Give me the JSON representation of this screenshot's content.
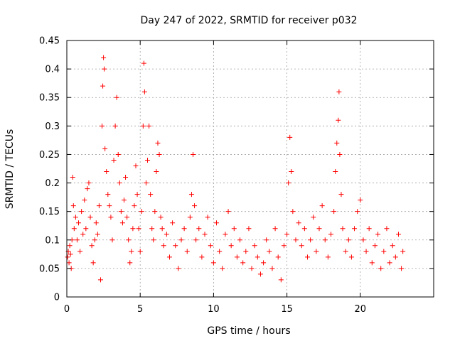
{
  "chart_data": {
    "type": "scatter",
    "title": "Day 247 of 2022, SRMTID for receiver p032",
    "xlabel": "GPS time / hours",
    "ylabel": "SRMTID / TECUs",
    "xlim": [
      0,
      25
    ],
    "ylim": [
      0,
      0.45
    ],
    "grid": true,
    "marker": "+",
    "marker_color": "#ff0000",
    "x_ticks": [
      0,
      5,
      10,
      15,
      20
    ],
    "x_tick_labels": [
      "0",
      "5",
      "10",
      "15",
      "20"
    ],
    "y_ticks": [
      0,
      0.05,
      0.1,
      0.15,
      0.2,
      0.25,
      0.3,
      0.35,
      0.4,
      0.45
    ],
    "y_tick_labels": [
      "0",
      "0.05",
      "0.1",
      "0.15",
      "0.2",
      "0.25",
      "0.3",
      "0.35",
      "0.4",
      "0.45"
    ],
    "series": [
      {
        "name": "SRMTID",
        "points": [
          [
            0.05,
            0.07
          ],
          [
            0.1,
            0.08
          ],
          [
            0.15,
            0.06
          ],
          [
            0.2,
            0.09
          ],
          [
            0.25,
            0.075
          ],
          [
            0.3,
            0.05
          ],
          [
            0.35,
            0.1
          ],
          [
            0.4,
            0.21
          ],
          [
            0.45,
            0.16
          ],
          [
            0.5,
            0.12
          ],
          [
            0.6,
            0.14
          ],
          [
            0.7,
            0.1
          ],
          [
            0.8,
            0.13
          ],
          [
            0.9,
            0.08
          ],
          [
            1.0,
            0.15
          ],
          [
            1.1,
            0.11
          ],
          [
            1.2,
            0.17
          ],
          [
            1.3,
            0.12
          ],
          [
            1.4,
            0.19
          ],
          [
            1.5,
            0.2
          ],
          [
            1.6,
            0.14
          ],
          [
            1.7,
            0.09
          ],
          [
            1.8,
            0.06
          ],
          [
            1.9,
            0.1
          ],
          [
            2.0,
            0.13
          ],
          [
            2.1,
            0.11
          ],
          [
            2.2,
            0.16
          ],
          [
            2.3,
            0.03
          ],
          [
            2.4,
            0.3
          ],
          [
            2.45,
            0.37
          ],
          [
            2.5,
            0.42
          ],
          [
            2.55,
            0.4
          ],
          [
            2.6,
            0.26
          ],
          [
            2.7,
            0.22
          ],
          [
            2.8,
            0.18
          ],
          [
            2.9,
            0.16
          ],
          [
            3.0,
            0.14
          ],
          [
            3.1,
            0.1
          ],
          [
            3.2,
            0.24
          ],
          [
            3.3,
            0.3
          ],
          [
            3.4,
            0.35
          ],
          [
            3.5,
            0.25
          ],
          [
            3.6,
            0.2
          ],
          [
            3.7,
            0.15
          ],
          [
            3.8,
            0.13
          ],
          [
            3.9,
            0.17
          ],
          [
            4.0,
            0.21
          ],
          [
            4.1,
            0.14
          ],
          [
            4.2,
            0.1
          ],
          [
            4.3,
            0.06
          ],
          [
            4.4,
            0.08
          ],
          [
            4.5,
            0.12
          ],
          [
            4.6,
            0.16
          ],
          [
            4.7,
            0.23
          ],
          [
            4.8,
            0.18
          ],
          [
            4.9,
            0.12
          ],
          [
            5.0,
            0.08
          ],
          [
            5.1,
            0.15
          ],
          [
            5.2,
            0.3
          ],
          [
            5.25,
            0.41
          ],
          [
            5.3,
            0.36
          ],
          [
            5.4,
            0.2
          ],
          [
            5.5,
            0.24
          ],
          [
            5.6,
            0.3
          ],
          [
            5.7,
            0.18
          ],
          [
            5.8,
            0.12
          ],
          [
            5.9,
            0.1
          ],
          [
            6.0,
            0.15
          ],
          [
            6.1,
            0.22
          ],
          [
            6.2,
            0.27
          ],
          [
            6.3,
            0.25
          ],
          [
            6.4,
            0.14
          ],
          [
            6.5,
            0.12
          ],
          [
            6.6,
            0.09
          ],
          [
            6.8,
            0.11
          ],
          [
            7.0,
            0.07
          ],
          [
            7.2,
            0.13
          ],
          [
            7.4,
            0.09
          ],
          [
            7.6,
            0.05
          ],
          [
            7.8,
            0.1
          ],
          [
            8.0,
            0.12
          ],
          [
            8.2,
            0.08
          ],
          [
            8.4,
            0.14
          ],
          [
            8.5,
            0.18
          ],
          [
            8.6,
            0.25
          ],
          [
            8.7,
            0.16
          ],
          [
            8.8,
            0.1
          ],
          [
            9.0,
            0.12
          ],
          [
            9.2,
            0.07
          ],
          [
            9.4,
            0.11
          ],
          [
            9.6,
            0.14
          ],
          [
            9.8,
            0.09
          ],
          [
            10.0,
            0.06
          ],
          [
            10.2,
            0.13
          ],
          [
            10.4,
            0.08
          ],
          [
            10.6,
            0.05
          ],
          [
            10.8,
            0.11
          ],
          [
            11.0,
            0.15
          ],
          [
            11.2,
            0.09
          ],
          [
            11.4,
            0.12
          ],
          [
            11.6,
            0.07
          ],
          [
            11.8,
            0.1
          ],
          [
            12.0,
            0.06
          ],
          [
            12.2,
            0.08
          ],
          [
            12.4,
            0.12
          ],
          [
            12.6,
            0.05
          ],
          [
            12.8,
            0.09
          ],
          [
            13.0,
            0.07
          ],
          [
            13.2,
            0.04
          ],
          [
            13.4,
            0.06
          ],
          [
            13.6,
            0.1
          ],
          [
            13.8,
            0.08
          ],
          [
            14.0,
            0.05
          ],
          [
            14.2,
            0.12
          ],
          [
            14.4,
            0.07
          ],
          [
            14.6,
            0.03
          ],
          [
            14.8,
            0.09
          ],
          [
            15.0,
            0.11
          ],
          [
            15.1,
            0.2
          ],
          [
            15.2,
            0.28
          ],
          [
            15.3,
            0.22
          ],
          [
            15.4,
            0.15
          ],
          [
            15.6,
            0.1
          ],
          [
            15.8,
            0.13
          ],
          [
            16.0,
            0.09
          ],
          [
            16.2,
            0.12
          ],
          [
            16.4,
            0.07
          ],
          [
            16.6,
            0.1
          ],
          [
            16.8,
            0.14
          ],
          [
            17.0,
            0.08
          ],
          [
            17.2,
            0.12
          ],
          [
            17.4,
            0.16
          ],
          [
            17.6,
            0.1
          ],
          [
            17.8,
            0.07
          ],
          [
            18.0,
            0.11
          ],
          [
            18.2,
            0.15
          ],
          [
            18.3,
            0.22
          ],
          [
            18.4,
            0.27
          ],
          [
            18.5,
            0.31
          ],
          [
            18.55,
            0.36
          ],
          [
            18.6,
            0.25
          ],
          [
            18.7,
            0.18
          ],
          [
            18.8,
            0.12
          ],
          [
            19.0,
            0.08
          ],
          [
            19.2,
            0.1
          ],
          [
            19.4,
            0.07
          ],
          [
            19.6,
            0.12
          ],
          [
            19.8,
            0.15
          ],
          [
            20.0,
            0.17
          ],
          [
            20.2,
            0.1
          ],
          [
            20.4,
            0.08
          ],
          [
            20.6,
            0.12
          ],
          [
            20.8,
            0.06
          ],
          [
            21.0,
            0.09
          ],
          [
            21.2,
            0.11
          ],
          [
            21.4,
            0.05
          ],
          [
            21.6,
            0.08
          ],
          [
            21.8,
            0.12
          ],
          [
            22.0,
            0.06
          ],
          [
            22.2,
            0.09
          ],
          [
            22.4,
            0.07
          ],
          [
            22.6,
            0.11
          ],
          [
            22.8,
            0.05
          ],
          [
            22.9,
            0.08
          ]
        ]
      }
    ]
  }
}
